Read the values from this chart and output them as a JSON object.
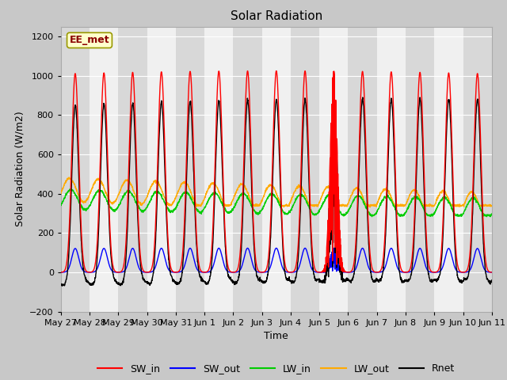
{
  "title": "Solar Radiation",
  "ylabel": "Solar Radiation (W/m2)",
  "xlabel": "Time",
  "ylim": [
    -200,
    1250
  ],
  "yticks": [
    -200,
    0,
    200,
    400,
    600,
    800,
    1000,
    1200
  ],
  "fig_bg_color": "#c8c8c8",
  "plot_bg_color": "#ffffff",
  "band_dark": "#d8d8d8",
  "band_light": "#f0f0f0",
  "annotation_text": "EE_met",
  "annotation_bg": "#ffffcc",
  "annotation_border": "#999900",
  "x_tick_labels": [
    "May 27",
    "May 28",
    "May 29",
    "May 30",
    "May 31",
    "Jun 1",
    "Jun 2",
    "Jun 3",
    "Jun 4",
    "Jun 5",
    "Jun 6",
    "Jun 7",
    "Jun 8",
    "Jun 9",
    "Jun 10",
    "Jun 11"
  ],
  "colors": {
    "SW_in": "#ff0000",
    "SW_out": "#0000ff",
    "LW_in": "#00cc00",
    "LW_out": "#ffaa00",
    "Rnet": "#000000"
  },
  "linewidth": 1.0,
  "n_days": 15,
  "points_per_day": 144
}
